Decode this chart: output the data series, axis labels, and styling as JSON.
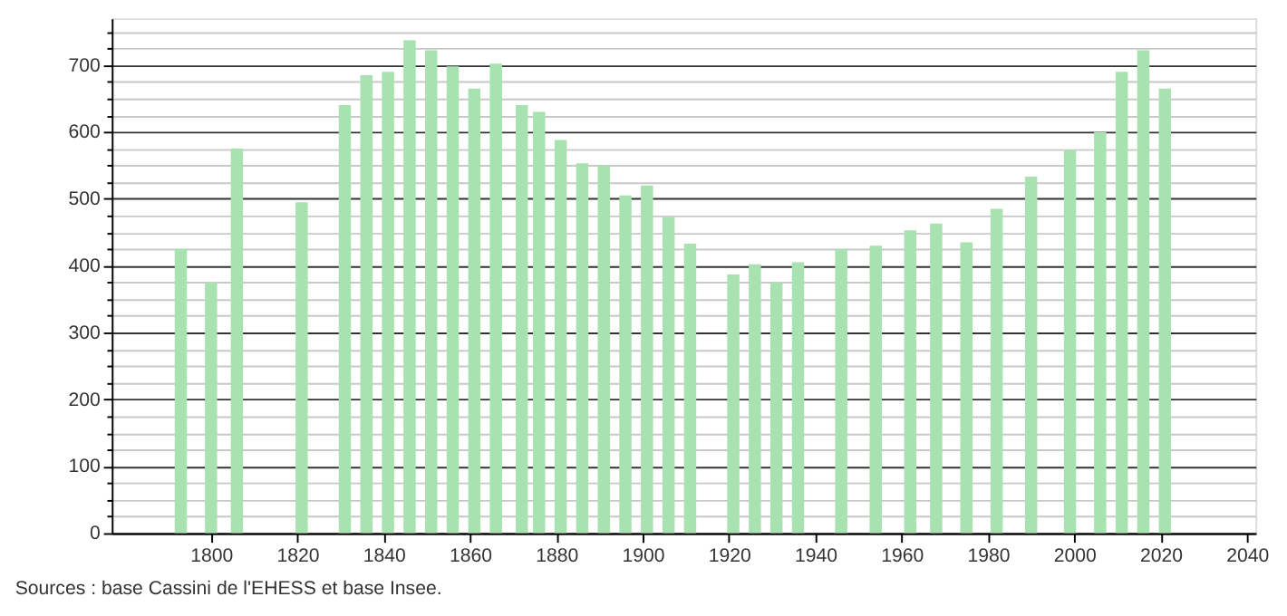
{
  "chart_data": {
    "type": "bar",
    "x": [
      1793,
      1800,
      1806,
      1821,
      1831,
      1836,
      1841,
      1846,
      1851,
      1856,
      1861,
      1866,
      1872,
      1876,
      1881,
      1886,
      1891,
      1896,
      1901,
      1906,
      1911,
      1921,
      1926,
      1931,
      1936,
      1946,
      1954,
      1962,
      1968,
      1975,
      1982,
      1990,
      1999,
      2006,
      2011,
      2016,
      2021
    ],
    "values": [
      425,
      375,
      575,
      495,
      640,
      685,
      690,
      737,
      722,
      698,
      665,
      702,
      640,
      630,
      588,
      553,
      550,
      505,
      520,
      473,
      433,
      387,
      402,
      375,
      405,
      425,
      430,
      453,
      463,
      435,
      485,
      533,
      573,
      600,
      690,
      722,
      665
    ],
    "color": "#a8e2b0",
    "xlim": [
      1777,
      2042
    ],
    "xticks": [
      1800,
      1820,
      1840,
      1860,
      1880,
      1900,
      1920,
      1940,
      1960,
      1980,
      2000,
      2020,
      2040
    ],
    "ylim": [
      0,
      770
    ],
    "yticks": [
      0,
      {
        "value": 25,
        "label": null
      },
      100,
      {
        "value": 125,
        "label": null
      },
      {
        "value": 150,
        "label": null
      },
      {
        "value": 175,
        "label": null
      },
      200,
      {
        "value": 225,
        "label": null
      },
      {
        "value": 250,
        "label": null
      },
      {
        "value": 275,
        "label": null
      },
      300,
      {
        "value": 325,
        "label": null
      },
      {
        "value": 350,
        "label": null
      },
      {
        "value": 375,
        "label": null
      },
      400,
      {
        "value": 425,
        "label": null
      },
      {
        "value": 450,
        "label": null
      },
      {
        "value": 475,
        "label": null
      },
      500,
      {
        "value": 525,
        "label": null
      },
      {
        "value": 550,
        "label": null
      },
      {
        "value": 575,
        "label": null
      },
      600,
      {
        "value": 625,
        "label": null
      },
      {
        "value": 650,
        "label": null
      },
      {
        "value": 675,
        "label": null
      },
      700,
      {
        "value": 725,
        "label": null
      },
      {
        "value": 750,
        "label": null
      },
      {
        "value": 50,
        "label": null
      },
      {
        "value": 75,
        "label": null
      }
    ],
    "grid": "y",
    "annotations": [
      "Sources : base Cassini de l'EHESS et base Insee."
    ]
  }
}
